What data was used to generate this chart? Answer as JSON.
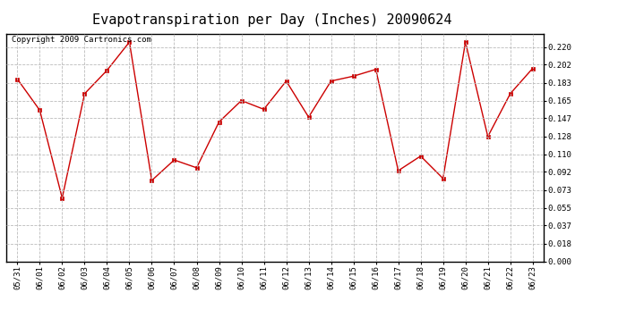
{
  "title": "Evapotranspiration per Day (Inches) 20090624",
  "copyright_text": "Copyright 2009 Cartronics.com",
  "dates": [
    "05/31",
    "06/01",
    "06/02",
    "06/03",
    "06/04",
    "06/05",
    "06/06",
    "06/07",
    "06/08",
    "06/09",
    "06/10",
    "06/11",
    "06/12",
    "06/13",
    "06/14",
    "06/15",
    "06/16",
    "06/17",
    "06/18",
    "06/19",
    "06/20",
    "06/21",
    "06/22",
    "06/23"
  ],
  "values": [
    0.187,
    0.155,
    0.065,
    0.172,
    0.196,
    0.225,
    0.083,
    0.104,
    0.096,
    0.143,
    0.165,
    0.156,
    0.185,
    0.148,
    0.185,
    0.19,
    0.197,
    0.093,
    0.108,
    0.085,
    0.225,
    0.128,
    0.172,
    0.198
  ],
  "ylim": [
    0.0,
    0.2338
  ],
  "yticks": [
    0.0,
    0.018,
    0.037,
    0.055,
    0.073,
    0.092,
    0.11,
    0.128,
    0.147,
    0.165,
    0.183,
    0.202,
    0.22
  ],
  "line_color": "#cc0000",
  "marker_color": "#cc0000",
  "bg_color": "#ffffff",
  "grid_color": "#bbbbbb",
  "title_fontsize": 11,
  "tick_fontsize": 6.5,
  "copyright_fontsize": 6.5
}
